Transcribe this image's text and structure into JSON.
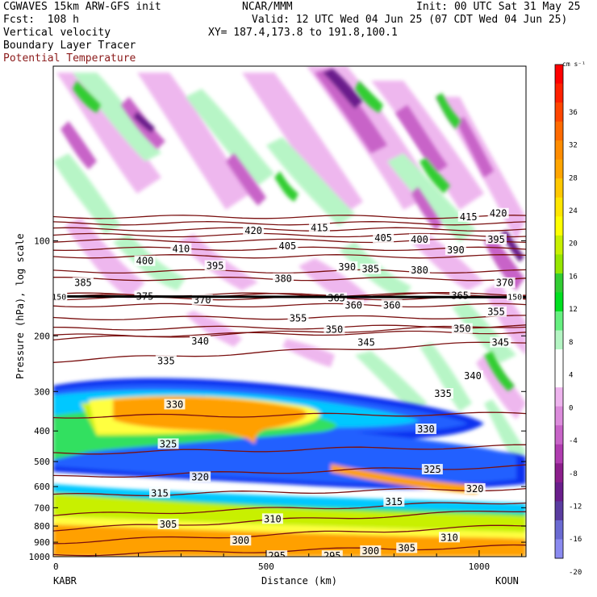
{
  "header": {
    "line1_left": "CGWAVES 15km ARW-GFS init",
    "line1_mid": "NCAR/MMM",
    "line1_right": "Init: 00 UTC Sat 31 May 25",
    "line2_left": "Fcst:  108 h",
    "line2_right": "Valid: 12 UTC Wed 04 Jun 25 (07 CDT Wed 04 Jun 25)",
    "line3_left": "Vertical velocity",
    "line3_right": "XY= 187.4,173.8 to 191.8,100.1",
    "line4_left": "Boundary Layer Tracer",
    "line5_left": "Potential Temperature"
  },
  "chart_data": {
    "type": "heatmap",
    "xlabel": "Distance (km)",
    "ylabel": "Pressure (hPa), log scale",
    "x_ticks": [
      0,
      500,
      1000
    ],
    "xlim": [
      0,
      1110
    ],
    "y_ticks": [
      100,
      200,
      300,
      400,
      500,
      600,
      700,
      800,
      900,
      1000
    ],
    "y_scale": "log",
    "ylim": [
      1000,
      28
    ],
    "endpoints": [
      "KABR",
      "KOUN"
    ],
    "colorbar": {
      "unit": "cm s⁻¹",
      "tick_labels": [
        "36",
        "32",
        "28",
        "24",
        "20",
        "16",
        "12",
        "8",
        "4",
        "0",
        "-4",
        "-8",
        "-12",
        "-16",
        "-20"
      ],
      "colors": [
        "#ff0000",
        "#ff2000",
        "#ff4500",
        "#ff6a00",
        "#ff8c00",
        "#ffa500",
        "#ffc800",
        "#ffe600",
        "#ffff00",
        "#c8f000",
        "#96e600",
        "#32cd32",
        "#00e020",
        "#66f080",
        "#b4f5c3",
        "#ffffff",
        "#ffffff",
        "#eeb4ee",
        "#dc8cdc",
        "#c864c8",
        "#b03cb0",
        "#8c1e8c",
        "#6a1e8c",
        "#5a3ca0",
        "#6a6ad2",
        "#8a8af0"
      ]
    },
    "theta_contours": [
      {
        "label": "295",
        "p": 985,
        "slope": 0.06
      },
      {
        "label": "300",
        "p": 900,
        "slope": 0.12
      },
      {
        "label": "305",
        "p": 820,
        "slope": 0.14
      },
      {
        "label": "310",
        "p": 740,
        "slope": 0.1
      },
      {
        "label": "315",
        "p": 640,
        "slope": 0.05
      },
      {
        "label": "320",
        "p": 560,
        "slope": 0.08
      },
      {
        "label": "325",
        "p": 470,
        "slope": 0.05
      },
      {
        "label": "330",
        "p": 360,
        "slope": 0.02
      },
      {
        "label": "335",
        "p": 240,
        "slope": 0.14
      },
      {
        "label": "340",
        "p": 205,
        "slope": 0.1
      },
      {
        "label": "345",
        "p": 200,
        "slope": 0.03
      },
      {
        "label": "350",
        "p": 190,
        "slope": 0.02
      },
      {
        "label": "355",
        "p": 176,
        "slope": 0.01
      },
      {
        "label": "360",
        "p": 160,
        "slope": 0.0
      },
      {
        "label": "365",
        "p": 152,
        "slope": 0.0
      },
      {
        "label": "370",
        "p": 150,
        "slope": 0.02
      },
      {
        "label": "375",
        "p": 148,
        "slope": 0.0
      },
      {
        "label": "380",
        "p": 132,
        "slope": 0.0
      },
      {
        "label": "385",
        "p": 125,
        "slope": 0.0
      },
      {
        "label": "390",
        "p": 112,
        "slope": 0.0
      },
      {
        "label": "395",
        "p": 106,
        "slope": 0.0
      },
      {
        "label": "400",
        "p": 100,
        "slope": 0.0
      },
      {
        "label": "405",
        "p": 96,
        "slope": 0.0
      },
      {
        "label": "410",
        "p": 92,
        "slope": 0.0
      },
      {
        "label": "415",
        "p": 88,
        "slope": 0.0
      },
      {
        "label": "420",
        "p": 84,
        "slope": 0.0
      }
    ],
    "theta_label_positions": [
      {
        "label": "295",
        "x": 525,
        "p": 995
      },
      {
        "label": "295",
        "x": 655,
        "p": 995
      },
      {
        "label": "300",
        "x": 440,
        "p": 890
      },
      {
        "label": "300",
        "x": 745,
        "p": 960
      },
      {
        "label": "305",
        "x": 270,
        "p": 790
      },
      {
        "label": "305",
        "x": 830,
        "p": 940
      },
      {
        "label": "310",
        "x": 515,
        "p": 760
      },
      {
        "label": "310",
        "x": 930,
        "p": 870
      },
      {
        "label": "315",
        "x": 250,
        "p": 630
      },
      {
        "label": "315",
        "x": 800,
        "p": 670
      },
      {
        "label": "320",
        "x": 345,
        "p": 560
      },
      {
        "label": "320",
        "x": 990,
        "p": 610
      },
      {
        "label": "325",
        "x": 270,
        "p": 440
      },
      {
        "label": "325",
        "x": 890,
        "p": 530
      },
      {
        "label": "330",
        "x": 285,
        "p": 330
      },
      {
        "label": "330",
        "x": 875,
        "p": 395
      },
      {
        "label": "335",
        "x": 265,
        "p": 240
      },
      {
        "label": "335",
        "x": 915,
        "p": 305
      },
      {
        "label": "340",
        "x": 345,
        "p": 208
      },
      {
        "label": "340",
        "x": 985,
        "p": 268
      },
      {
        "label": "345",
        "x": 735,
        "p": 210
      },
      {
        "label": "345",
        "x": 1050,
        "p": 210
      },
      {
        "label": "350",
        "x": 660,
        "p": 191
      },
      {
        "label": "350",
        "x": 960,
        "p": 190
      },
      {
        "label": "355",
        "x": 575,
        "p": 176
      },
      {
        "label": "355",
        "x": 1040,
        "p": 168
      },
      {
        "label": "360",
        "x": 705,
        "p": 160
      },
      {
        "label": "360",
        "x": 795,
        "p": 160
      },
      {
        "label": "365",
        "x": 665,
        "p": 152
      },
      {
        "label": "365",
        "x": 955,
        "p": 149
      },
      {
        "label": "370",
        "x": 350,
        "p": 154
      },
      {
        "label": "370",
        "x": 1060,
        "p": 136
      },
      {
        "label": "375",
        "x": 215,
        "p": 150
      },
      {
        "label": "380",
        "x": 540,
        "p": 132
      },
      {
        "label": "380",
        "x": 860,
        "p": 124
      },
      {
        "label": "385",
        "x": 70,
        "p": 136
      },
      {
        "label": "385",
        "x": 745,
        "p": 123
      },
      {
        "label": "390",
        "x": 690,
        "p": 121
      },
      {
        "label": "390",
        "x": 945,
        "p": 107
      },
      {
        "label": "395",
        "x": 380,
        "p": 120
      },
      {
        "label": "395",
        "x": 1040,
        "p": 99
      },
      {
        "label": "400",
        "x": 215,
        "p": 116
      },
      {
        "label": "400",
        "x": 860,
        "p": 99
      },
      {
        "label": "405",
        "x": 550,
        "p": 104
      },
      {
        "label": "405",
        "x": 775,
        "p": 98
      },
      {
        "label": "410",
        "x": 300,
        "p": 106
      },
      {
        "label": "415",
        "x": 625,
        "p": 91
      },
      {
        "label": "415",
        "x": 975,
        "p": 84
      },
      {
        "label": "420",
        "x": 470,
        "p": 93
      },
      {
        "label": "420",
        "x": 1045,
        "p": 82
      }
    ],
    "tropopause_p": 150,
    "tropopause_label": "150",
    "tropopause_labels_x": [
      10,
      1080
    ],
    "tracer_levels": [
      "#1030f0",
      "#2060ff",
      "#00c8ff",
      "#30e060",
      "#c8f000",
      "#ffff40",
      "#ffa000"
    ]
  },
  "colors": {
    "theta": "#7a1010",
    "frame": "#000000",
    "header_red": "#8b1a1a"
  }
}
